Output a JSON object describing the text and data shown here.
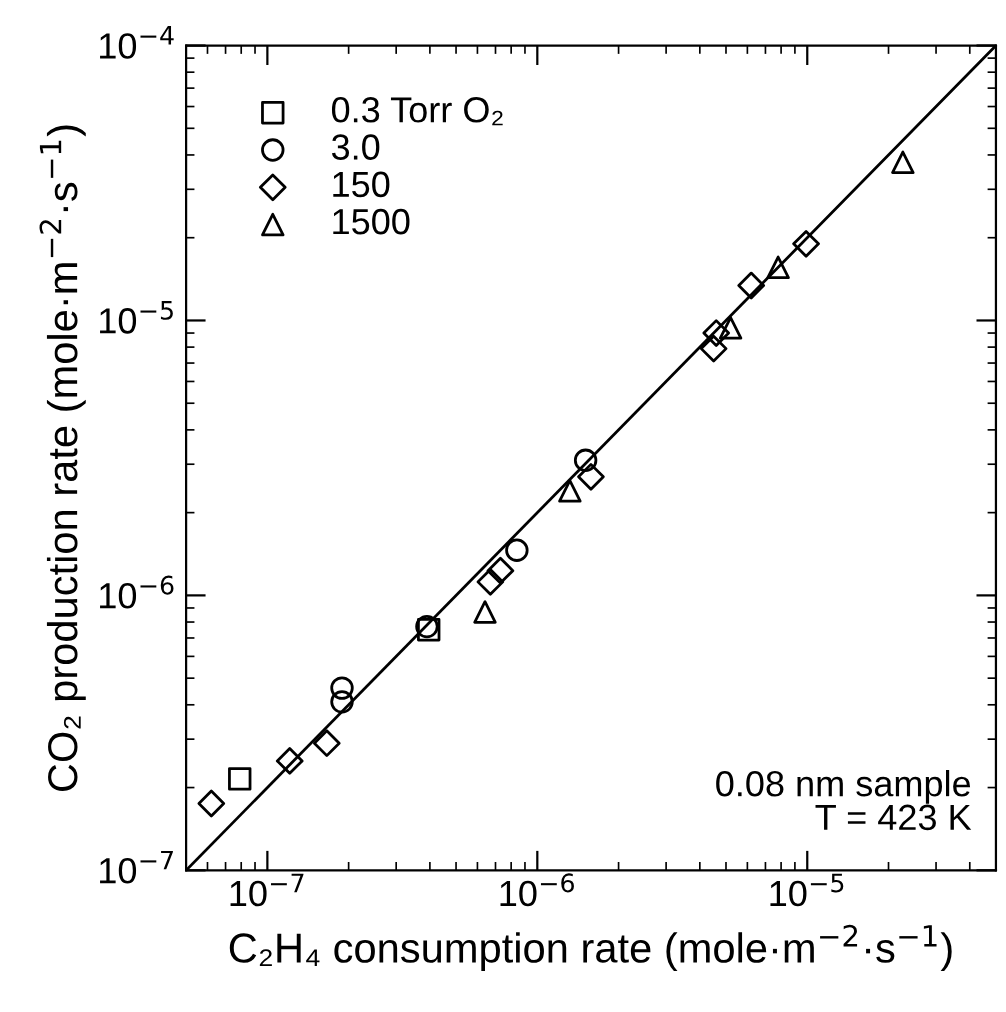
{
  "chart_data": {
    "type": "scatter",
    "xlabel": "C₂H₄ consumption rate (mole·m$^{−2}$·s$^{−1}$)",
    "ylabel": "CO₂ production rate (mole·m$^{−2}$·s$^{−1}$)",
    "log": "xy",
    "xlim": [
      5e-08,
      5e-05
    ],
    "ylim": [
      1e-07,
      0.0001
    ],
    "xticks": [
      {
        "value": 1e-07,
        "label": "10$^{−7}$"
      },
      {
        "value": 1e-06,
        "label": "10$^{−6}$"
      },
      {
        "value": 1e-05,
        "label": "10$^{−5}$"
      }
    ],
    "yticks": [
      {
        "value": 1e-07,
        "label": "10$^{−7}$"
      },
      {
        "value": 1e-06,
        "label": "10$^{−6}$"
      },
      {
        "value": 1e-05,
        "label": "10$^{−5}$"
      },
      {
        "value": 0.0001,
        "label": "10$^{−4}$"
      }
    ],
    "legend": "top left",
    "grid": false,
    "annotations": [
      "0.08 nm sample",
      "T = 423 K"
    ],
    "series": [
      {
        "name": "0.3 Torr O₂",
        "color": "#000000",
        "marker": "square",
        "x": [
          7.9e-08,
          3.96e-07
        ],
        "values": [
          2.15e-07,
          7.5e-07
        ]
      },
      {
        "name": "3.0",
        "color": "#000000",
        "marker": "circle",
        "x": [
          1.89e-07,
          1.89e-07,
          3.9e-07,
          8.4e-07,
          1.51e-06
        ],
        "values": [
          4.6e-07,
          4.1e-07,
          7.7e-07,
          1.46e-06,
          3.1e-06
        ]
      },
      {
        "name": "150",
        "color": "#000000",
        "marker": "diamond",
        "x": [
          6.2e-08,
          1.21e-07,
          1.66e-07,
          6.7e-07,
          7.3e-07,
          1.58e-06,
          4.5e-06,
          4.6e-06,
          6.2e-06,
          9.9e-06
        ],
        "values": [
          1.75e-07,
          2.5e-07,
          2.9e-07,
          1.12e-06,
          1.23e-06,
          2.7e-06,
          7.9e-06,
          9e-06,
          1.34e-05,
          1.9e-05
        ]
      },
      {
        "name": "1500",
        "color": "#000000",
        "marker": "triangle",
        "x": [
          6.4e-07,
          1.32e-06,
          5.2e-06,
          7.8e-06,
          2.26e-05
        ],
        "values": [
          8.7e-07,
          2.4e-06,
          9.4e-06,
          1.56e-05,
          3.76e-05
        ]
      },
      {
        "type": "line",
        "color": "#000000",
        "line_style": "solid",
        "x": [
          5e-08,
          5e-05
        ],
        "values": [
          1e-07,
          0.0001
        ]
      }
    ]
  }
}
